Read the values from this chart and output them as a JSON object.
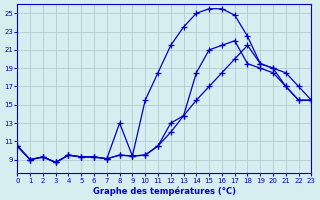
{
  "xlabel": "Graphe des températures (°C)",
  "background_color": "#d6eef0",
  "grid_color": "#b0cdd0",
  "line_color": "#0000cc",
  "xlim": [
    0,
    23
  ],
  "ylim": [
    8,
    26
  ],
  "xticks": [
    0,
    1,
    2,
    3,
    4,
    5,
    6,
    7,
    8,
    9,
    10,
    11,
    12,
    13,
    14,
    15,
    16,
    17,
    18,
    19,
    20,
    21,
    22,
    23
  ],
  "yticks": [
    9,
    11,
    13,
    15,
    17,
    19,
    21,
    23,
    25
  ],
  "line1_x": [
    0,
    1,
    2,
    3,
    4,
    5,
    6,
    7,
    8,
    9,
    10,
    11,
    12,
    13,
    14,
    15,
    16,
    17,
    18,
    19,
    20,
    21,
    22,
    23
  ],
  "line1_y": [
    10.5,
    9.0,
    9.3,
    8.7,
    9.5,
    9.3,
    9.3,
    9.1,
    9.5,
    9.4,
    9.5,
    10.5,
    13.0,
    13.8,
    18.5,
    21.0,
    21.5,
    22.0,
    19.5,
    19.0,
    18.5,
    17.0,
    15.5,
    15.5
  ],
  "line2_x": [
    0,
    1,
    2,
    3,
    4,
    5,
    6,
    7,
    8,
    9,
    10,
    11,
    12,
    13,
    14,
    15,
    16,
    17,
    18,
    19,
    20,
    21,
    22,
    23
  ],
  "line2_y": [
    10.5,
    9.0,
    9.3,
    8.7,
    9.5,
    9.3,
    9.3,
    9.1,
    13.0,
    9.4,
    15.5,
    18.5,
    21.5,
    23.5,
    25.0,
    25.5,
    25.5,
    24.8,
    22.5,
    19.5,
    19.0,
    18.5,
    17.0,
    15.5
  ],
  "line3_x": [
    0,
    1,
    2,
    3,
    4,
    5,
    6,
    7,
    8,
    9,
    10,
    11,
    12,
    13,
    14,
    15,
    16,
    17,
    18,
    19,
    20,
    21,
    22,
    23
  ],
  "line3_y": [
    10.5,
    9.0,
    9.3,
    8.7,
    9.5,
    9.3,
    9.3,
    9.1,
    9.5,
    9.4,
    9.5,
    10.5,
    12.0,
    13.8,
    15.5,
    17.0,
    18.5,
    20.0,
    21.5,
    19.5,
    19.0,
    17.0,
    15.5,
    15.5
  ]
}
